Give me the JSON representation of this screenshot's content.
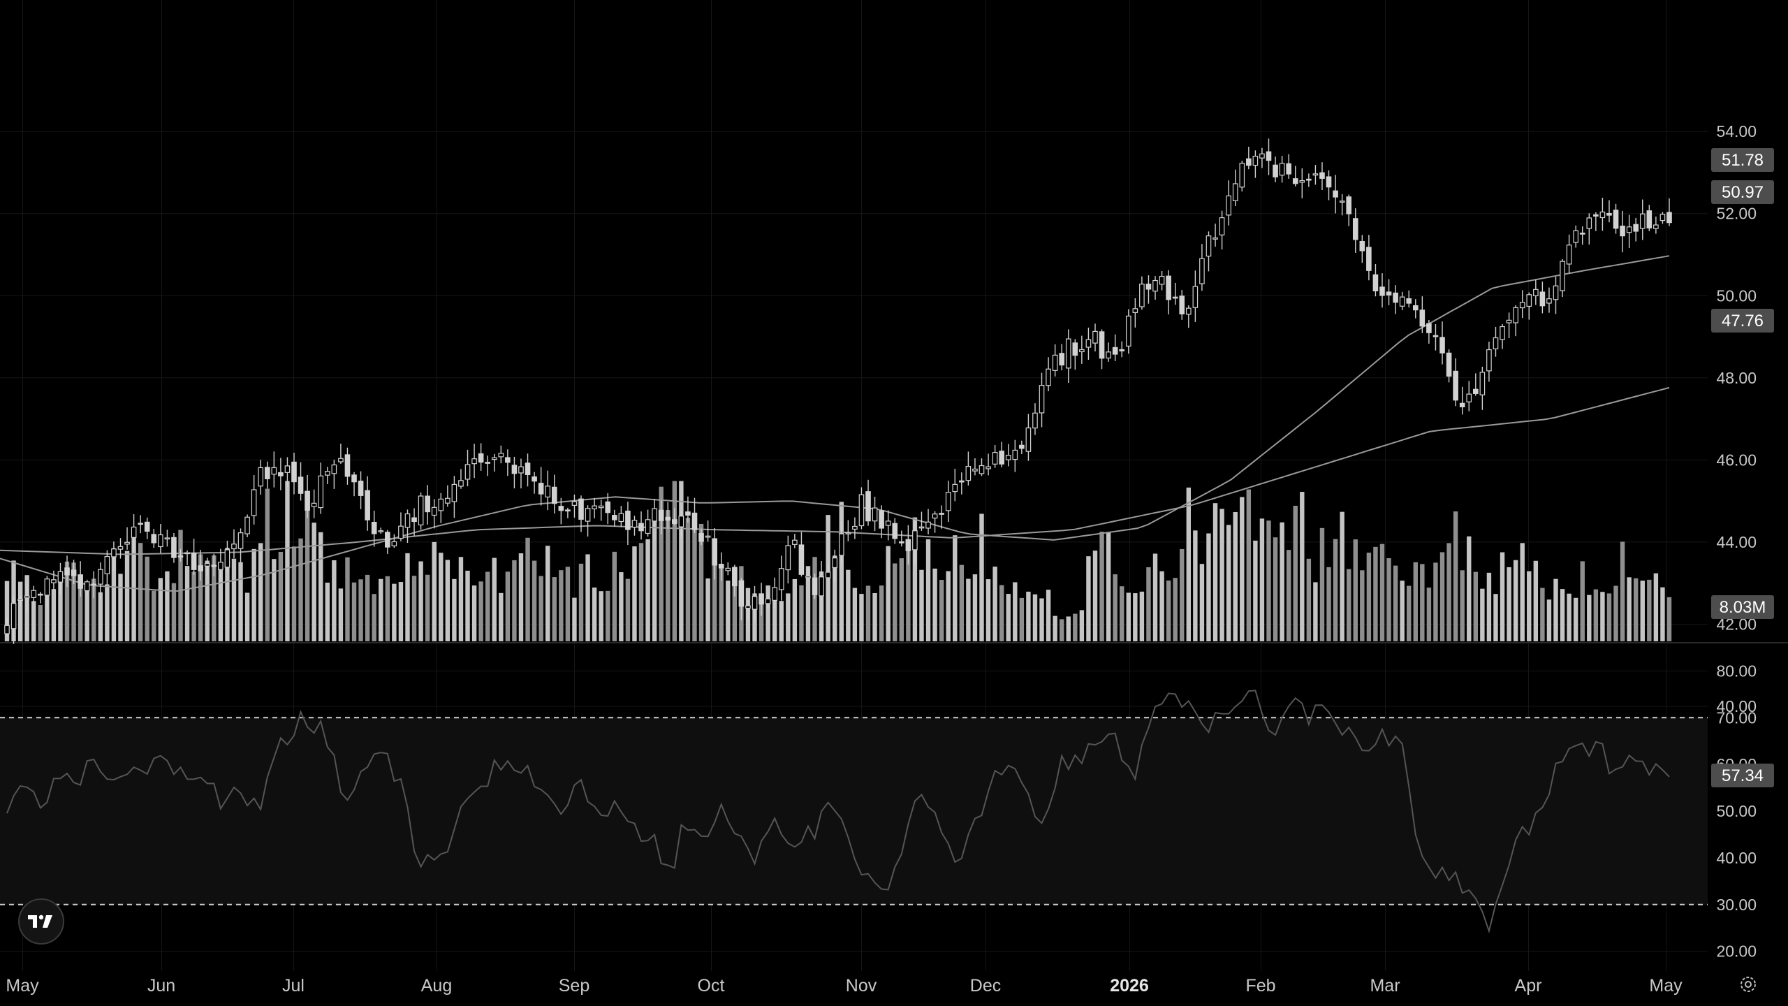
{
  "colors": {
    "background": "#000000",
    "grid": "#161616",
    "candle": "#d2d2d2",
    "volume_up": "#c4c4c4",
    "volume_down": "#8e8e8e",
    "ma": "#9a9a9a",
    "rsi_line": "#555555",
    "rsi_band": "#0f0f0f",
    "badge_bg": "#4d4d4d",
    "badge_text": "#ffffff",
    "axis_text": "#c8c8c8"
  },
  "icons": {
    "logo": "tradingview-logo-icon",
    "settings": "settings-icon"
  },
  "chart_data": [
    {
      "type": "candlestick",
      "panel": "price",
      "title": "",
      "price_axis_labels": [
        "54.00",
        "52.00",
        "50.00",
        "48.00",
        "46.00",
        "44.00",
        "42.00",
        "40.00"
      ],
      "ylim": [
        40.0,
        55.5
      ],
      "x_axis_labels": [
        "May",
        "Jun",
        "Jul",
        "Aug",
        "Sep",
        "Oct",
        "Nov",
        "Dec",
        "2026",
        "Feb",
        "Mar",
        "Apr",
        "May"
      ],
      "x_axis_bold": [
        "2026"
      ],
      "grid": true,
      "x_dates": [
        "2025-05-01",
        "2025-06-02",
        "2025-07-01",
        "2025-08-01",
        "2025-09-02",
        "2025-10-01",
        "2025-11-03",
        "2025-12-01",
        "2026-01-02",
        "2026-02-02",
        "2026-03-02",
        "2026-04-01",
        "2026-04-24"
      ],
      "close_keypoints": [
        42.2,
        42.7,
        43.1,
        43.0,
        43.3,
        44.1,
        44.3,
        43.9,
        43.6,
        43.5,
        44.1,
        45.6,
        45.8,
        44.8,
        45.9,
        45.7,
        44.0,
        44.3,
        44.9,
        45.1,
        45.7,
        46.2,
        45.7,
        45.4,
        45.0,
        44.8,
        45.0,
        44.4,
        44.6,
        44.7,
        44.1,
        43.5,
        42.3,
        42.8,
        44.0,
        42.7,
        43.8,
        44.9,
        44.4,
        44.0,
        44.7,
        45.2,
        45.8,
        46.0,
        46.5,
        48.0,
        48.7,
        49.0,
        48.4,
        50.0,
        50.3,
        49.6,
        51.2,
        52.4,
        53.6,
        53.0,
        52.9,
        53.1,
        52.0,
        50.6,
        49.8,
        49.6,
        49.0,
        47.0,
        48.4,
        49.3,
        49.8,
        50.2,
        51.7,
        51.9,
        51.6,
        51.9,
        51.78
      ],
      "ma_fast_keypoints": [
        43.6,
        42.95,
        42.8,
        43.2,
        43.8,
        44.4,
        44.9,
        45.1,
        44.95,
        45.0,
        44.8,
        44.2,
        44.05,
        44.35,
        45.5,
        47.2,
        49.0,
        50.2,
        50.6,
        50.97
      ],
      "ma_slow_keypoints": [
        43.8,
        43.7,
        43.75,
        44.0,
        44.3,
        44.4,
        44.3,
        44.25,
        44.1,
        44.3,
        44.9,
        45.8,
        46.7,
        47.0,
        47.76
      ],
      "last_close": 51.78,
      "ma_fast_last": 50.97,
      "ma_slow_last": 47.76
    },
    {
      "type": "bar",
      "panel": "volume",
      "last_value_label": "8.03M",
      "volume_keypoints": [
        5,
        6,
        5,
        4,
        5,
        7,
        6,
        5,
        5,
        8,
        7,
        6,
        6,
        5,
        7,
        6,
        8,
        7,
        6,
        5,
        9,
        6,
        10,
        12,
        8,
        7,
        5,
        6,
        6,
        5,
        6,
        7,
        6,
        8,
        6,
        7,
        6,
        5,
        6,
        5,
        6,
        10,
        6,
        7,
        6,
        5,
        6,
        5,
        6,
        5,
        9,
        8,
        12,
        13,
        10,
        8,
        6,
        5,
        6,
        5,
        5,
        4,
        4,
        5,
        7,
        6,
        7,
        4,
        5,
        5,
        8,
        9,
        8,
        6,
        5,
        6,
        7,
        6,
        5,
        5,
        3,
        4,
        4,
        2,
        3,
        4,
        8,
        7,
        6,
        5,
        6,
        7,
        6,
        7,
        8,
        10,
        11,
        13,
        12,
        9,
        8,
        9,
        10,
        7,
        8,
        9,
        7,
        6,
        7,
        8,
        7,
        6,
        5,
        8,
        9,
        8,
        6,
        5,
        6,
        7,
        6,
        5,
        5,
        4,
        6,
        5,
        4,
        7,
        6,
        5,
        5,
        4
      ]
    },
    {
      "type": "line",
      "panel": "rsi",
      "y_axis_labels": [
        "80.00",
        "70.00",
        "60.00",
        "50.00",
        "40.00",
        "30.00",
        "20.00"
      ],
      "ylim": [
        18,
        82
      ],
      "upper_band": 70,
      "lower_band": 30,
      "last_value": 57.34,
      "rsi_keypoints": [
        52,
        55,
        51,
        58,
        57,
        62,
        55,
        58,
        60,
        62,
        57,
        60,
        52,
        55,
        50,
        62,
        68,
        70,
        65,
        52,
        58,
        62,
        55,
        40,
        38,
        45,
        55,
        58,
        62,
        60,
        55,
        50,
        57,
        48,
        51,
        47,
        45,
        36,
        48,
        45,
        50,
        43,
        40,
        48,
        42,
        45,
        50,
        44,
        37,
        32,
        42,
        52,
        48,
        40,
        45,
        55,
        60,
        52,
        48,
        60,
        62,
        65,
        68,
        55,
        72,
        73,
        74,
        65,
        72,
        73,
        74,
        65,
        76,
        70,
        72,
        66,
        65,
        66,
        64,
        40,
        38,
        37,
        32,
        26,
        40,
        46,
        50,
        62,
        63,
        65,
        58,
        60,
        58,
        57.34
      ]
    }
  ],
  "badges": {
    "last_close": "51.78",
    "ma_fast": "50.97",
    "ma_slow": "47.76",
    "volume": "8.03M",
    "rsi": "57.34"
  }
}
